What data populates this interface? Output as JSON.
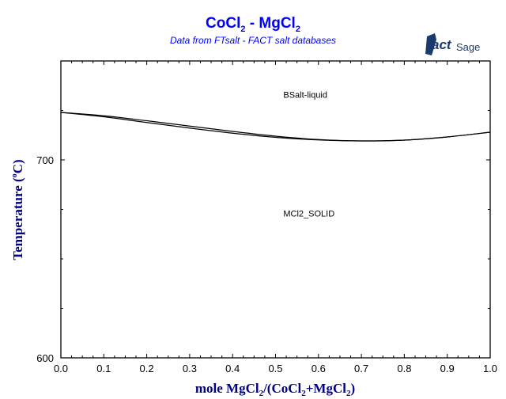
{
  "chart_data": {
    "type": "line",
    "title": "CoCl2 - MgCl2",
    "title_parts": {
      "a": "CoCl",
      "a_sub": "2",
      "sep": " - MgCl",
      "b_sub": "2"
    },
    "subtitle": "Data from FTsalt - FACT salt databases",
    "logo_text": "FactSage",
    "xlabel_parts": [
      "mole MgCl",
      "2",
      "/(CoCl",
      "2",
      "+MgCl",
      "2",
      ")"
    ],
    "ylabel_parts": [
      "Temperature (",
      "o",
      "C)"
    ],
    "xlim": [
      0,
      1
    ],
    "ylim": [
      600,
      750
    ],
    "x_ticks": [
      "0.0",
      "0.1",
      "0.2",
      "0.3",
      "0.4",
      "0.5",
      "0.6",
      "0.7",
      "0.8",
      "0.9",
      "1.0"
    ],
    "y_ticks": [
      "600",
      "700"
    ],
    "grid": false,
    "series": [
      {
        "x": [
          0,
          0.1,
          0.2,
          0.3,
          0.4,
          0.5,
          0.6,
          0.7,
          0.8,
          0.9,
          1.0
        ],
        "y": [
          724,
          722.3,
          719.8,
          717.1,
          714.4,
          712,
          710.3,
          709.6,
          710,
          711.6,
          714
        ]
      },
      {
        "x": [
          0,
          0.1,
          0.2,
          0.3,
          0.4,
          0.5,
          0.6,
          0.7,
          0.8,
          0.9,
          1.0
        ],
        "y": [
          724,
          721.8,
          718.9,
          716.1,
          713.5,
          711.4,
          710.1,
          709.6,
          710,
          711.6,
          714
        ]
      }
    ],
    "annotations": [
      {
        "text": "BSalt-liquid",
        "x": 0.52,
        "y": 733
      },
      {
        "text": "MCl2_SOLID",
        "x": 0.52,
        "y": 673
      }
    ],
    "colors": {
      "title": "#0000ff",
      "axis_title": "#000080",
      "logo": "#1a3a6e",
      "line": "#000000"
    }
  }
}
